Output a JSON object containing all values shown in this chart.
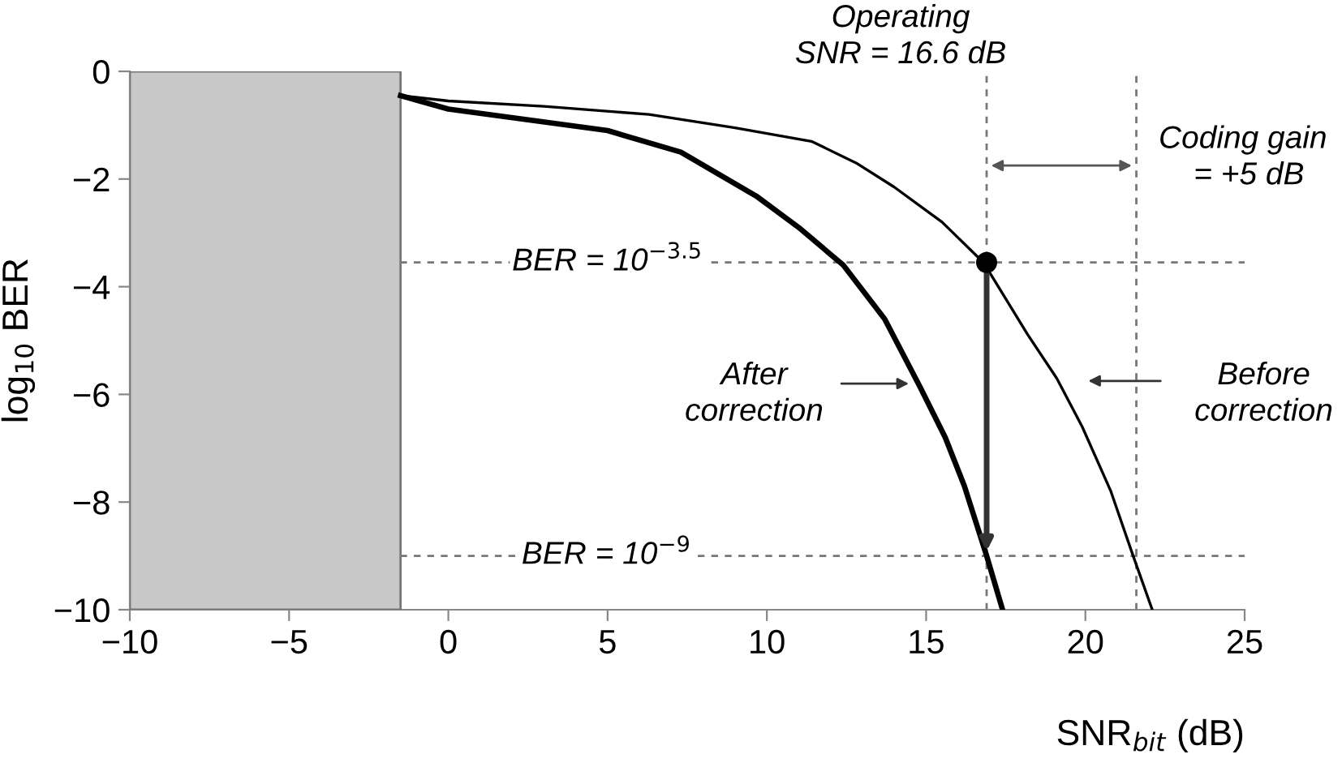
{
  "chart_data": {
    "type": "line",
    "xlabel": "SNR$_{bit}$ (dB)",
    "ylabel": "log$_{10}$ BER",
    "xlim": [
      -10,
      25
    ],
    "xticks": [
      {
        "value": -10,
        "label": "−10"
      },
      {
        "value": -5,
        "label": "−5"
      },
      0,
      5,
      10,
      15,
      20,
      25
    ],
    "ylim": [
      -10,
      0
    ],
    "yticks": [
      {
        "value": -10,
        "label": "−10"
      },
      {
        "value": -8,
        "label": "−8"
      },
      {
        "value": -6,
        "label": "−6"
      },
      {
        "value": -4,
        "label": "−4"
      },
      {
        "value": -2,
        "label": "−2"
      },
      0
    ],
    "grid": false,
    "series": [
      {
        "color": "#000000",
        "x": [
          -1.5,
          0,
          2.5,
          5,
          7.3,
          9.7,
          11,
          12.4,
          13.7,
          14.8,
          15.6,
          16.2,
          16.9,
          17.4
        ],
        "values": [
          -0.45,
          -0.7,
          -0.9,
          -1.1,
          -1.5,
          -2.33,
          -2.9,
          -3.6,
          -4.6,
          -5.85,
          -6.8,
          -7.7,
          -9.0,
          -10
        ]
      },
      {
        "color": "#000000",
        "x": [
          -1.5,
          0,
          3,
          6.3,
          9,
          11.4,
          12.8,
          14.0,
          15.5,
          16.8,
          18.2,
          19.1,
          19.9,
          20.8,
          21.5,
          22.1
        ],
        "values": [
          -0.45,
          -0.55,
          -0.65,
          -0.8,
          -1.05,
          -1.3,
          -1.7,
          -2.15,
          -2.8,
          -3.55,
          -4.9,
          -5.7,
          -6.6,
          -7.8,
          -9.0,
          -10
        ]
      },
      {
        "type": "scatter",
        "color": "#000000",
        "marker": "circle",
        "x": [
          16.9
        ],
        "values": [
          -3.55
        ]
      }
    ],
    "bands": [
      {
        "axis": "x",
        "from": -10,
        "to": -1.5,
        "color": "#c8c8c8"
      }
    ],
    "ref_lines": [
      {
        "axis": "y",
        "value": -3.55,
        "line_style": "dashed",
        "color": "#777777"
      },
      {
        "axis": "y",
        "value": -9,
        "line_style": "dashed",
        "color": "#777777"
      },
      {
        "axis": "x",
        "value": 16.9,
        "line_style": "dashed",
        "color": "#777777"
      },
      {
        "axis": "x",
        "value": 21.6,
        "line_style": "dashed",
        "color": "#777777"
      }
    ],
    "annotations": [
      "BER = 10$^{−3.5}$",
      "BER = 10$^{−9}$",
      "Operating\nSNR = 16.6 dB",
      "Coding gain\n    = +5 dB",
      "After\ncorrection",
      "Before\ncorrection"
    ]
  }
}
